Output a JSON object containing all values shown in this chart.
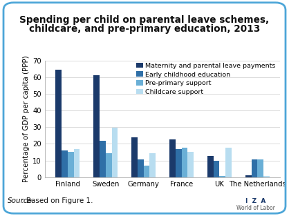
{
  "title_line1": "Spending per child on parental leave schemes,",
  "title_line2": "childcare, and pre-primary education, 2013",
  "ylabel": "Percentage of GDP per capita (PPP)",
  "ylim": [
    0,
    70
  ],
  "yticks": [
    0,
    10,
    20,
    30,
    40,
    50,
    60,
    70
  ],
  "countries": [
    "Finland",
    "Sweden",
    "Germany",
    "France",
    "UK",
    "The Netherlands"
  ],
  "series": {
    "Maternity and parental leave payments": [
      64.5,
      61.0,
      24.0,
      22.5,
      12.5,
      1.0
    ],
    "Early childhood education": [
      16.0,
      22.0,
      10.5,
      17.0,
      10.0,
      10.5
    ],
    "Pre-primary support": [
      15.0,
      14.5,
      7.0,
      17.5,
      0.5,
      10.5
    ],
    "Childcare support": [
      17.0,
      29.5,
      14.5,
      15.0,
      17.5,
      0.5
    ]
  },
  "colors": {
    "Maternity and parental leave payments": "#1b3a6b",
    "Early childhood education": "#2f6fa7",
    "Pre-primary support": "#6aafd6",
    "Childcare support": "#b8ddf0"
  },
  "legend_labels": [
    "Maternity and parental leave payments",
    "Early childhood education",
    "Pre-primary support",
    "Childcare support"
  ],
  "source_italic": "Source",
  "source_rest": ": Based on Figure 1.",
  "border_color": "#4da6d8",
  "background_color": "#ffffff",
  "title_fontsize": 9.8,
  "axis_fontsize": 7.5,
  "tick_fontsize": 7.2,
  "legend_fontsize": 6.8,
  "source_fontsize": 7.5,
  "iza_color": "#1b3a6b",
  "wol_color": "#555555"
}
